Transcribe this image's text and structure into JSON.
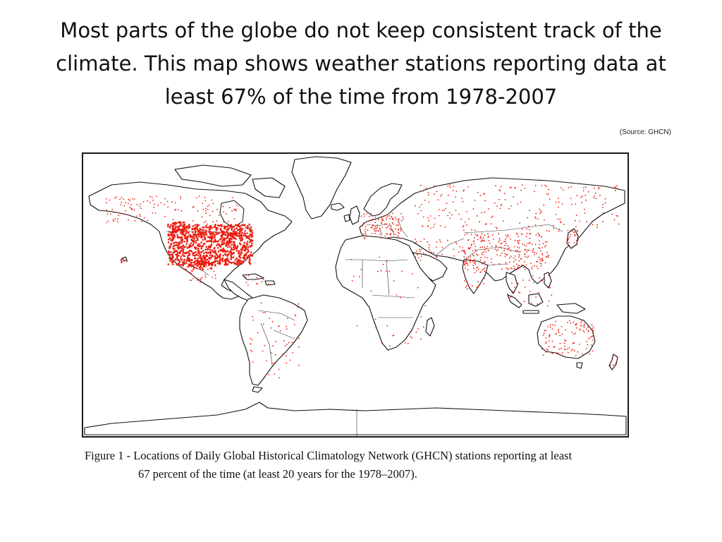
{
  "slide": {
    "title": "Most parts of the globe do not keep consistent track of the climate. This map shows weather stations reporting data at least 67% of the time from 1978-2007",
    "source": "(Source: GHCN)"
  },
  "figure": {
    "caption_lead": "Figure 1 - ",
    "caption_line1": "Locations of Daily Global Historical Climatology Network (GHCN) stations reporting at least",
    "caption_line2": "67 percent of the time (at least  20 years for the 1978–2007)."
  },
  "map": {
    "station_color": "#ee1c0f",
    "land_outline_color": "#111111",
    "station_density": [
      {
        "region": "United States",
        "level": "very dense"
      },
      {
        "region": "Canada",
        "level": "sparse"
      },
      {
        "region": "Mexico",
        "level": "moderate"
      },
      {
        "region": "Europe",
        "level": "moderate"
      },
      {
        "region": "Russia",
        "level": "sparse"
      },
      {
        "region": "China",
        "level": "moderate"
      },
      {
        "region": "South America",
        "level": "sparse"
      },
      {
        "region": "Africa",
        "level": "very sparse"
      },
      {
        "region": "Australia",
        "level": "moderate"
      },
      {
        "region": "Antarctica",
        "level": "none"
      }
    ]
  }
}
